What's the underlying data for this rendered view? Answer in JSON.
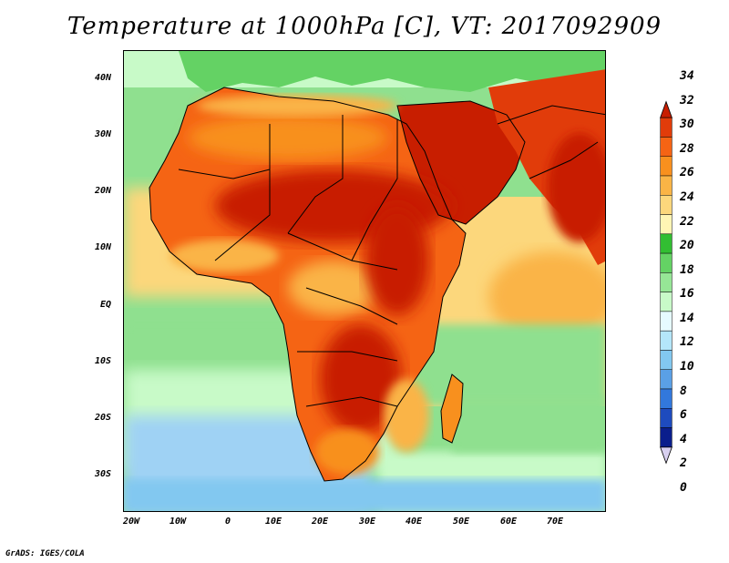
{
  "title": "Temperature at 1000hPa [C], VT: 2017092909",
  "footer": "GrADS: IGES/COLA",
  "lat_labels": [
    "40N",
    "30N",
    "20N",
    "10N",
    "EQ",
    "10S",
    "20S",
    "30S"
  ],
  "lon_labels": [
    "20W",
    "10W",
    "0",
    "10E",
    "20E",
    "30E",
    "40E",
    "50E",
    "60E",
    "70E"
  ],
  "colorbar": {
    "values": [
      "34",
      "32",
      "30",
      "28",
      "26",
      "24",
      "22",
      "20",
      "18",
      "16",
      "14",
      "12",
      "10",
      "8",
      "6",
      "4",
      "2",
      "0"
    ],
    "colors": [
      "#c81e00",
      "#e13c0a",
      "#f56414",
      "#f8901e",
      "#fab446",
      "#fcd77c",
      "#fff5b4",
      "#32be32",
      "#64d264",
      "#96e696",
      "#c8fac8",
      "#e6faff",
      "#b4e6fa",
      "#82c8f0",
      "#5aa0e6",
      "#3278dc",
      "#1e4bbe",
      "#0a1e8c",
      "#000064"
    ]
  },
  "palette": {
    "ocean_cool": "#9fd2f4",
    "ocean_pale": "#e2f8ff",
    "ocean_green": "#8fe08f",
    "ocean_warm": "#fcd77c",
    "land_hot": "#e03a0a",
    "land_very_hot": "#c81e00",
    "land_warm": "#f8901e",
    "land_mild": "#fab446",
    "border": "#000000"
  }
}
